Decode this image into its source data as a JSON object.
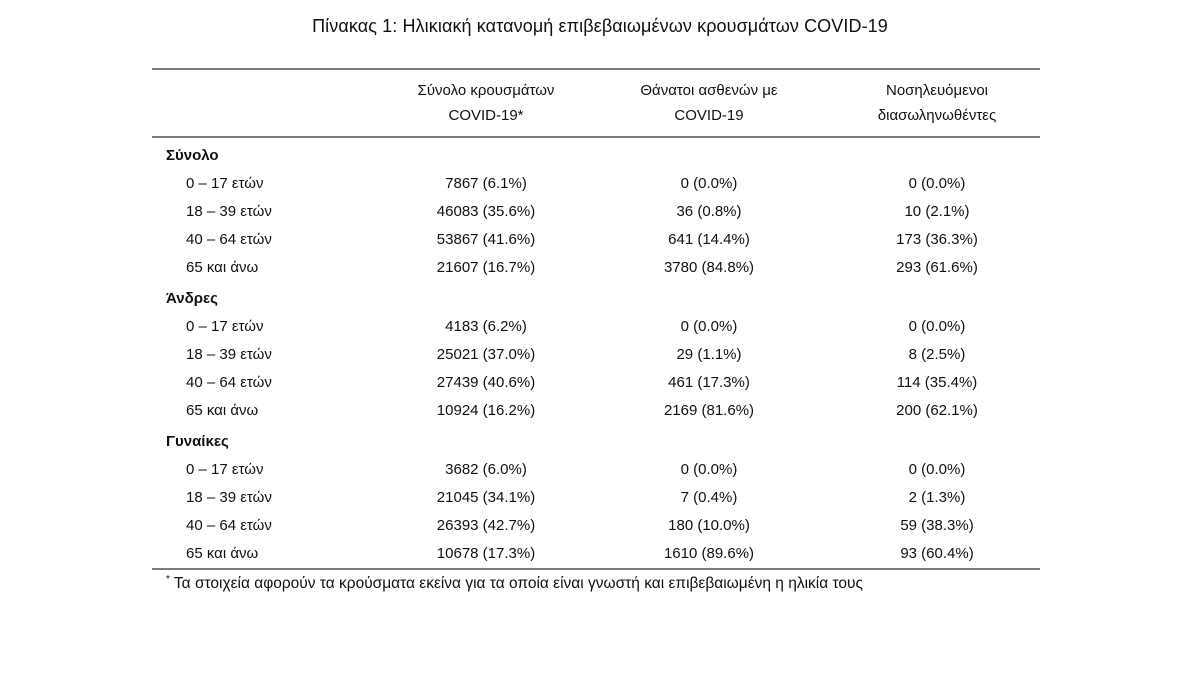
{
  "title": "Πίνακας 1: Ηλικιακή κατανομή επιβεβαιωμένων κρουσμάτων COVID-19",
  "columns": {
    "c1": "Σύνολο κρουσμάτων\nCOVID-19*",
    "c2": "Θάνατοι ασθενών με\nCOVID-19",
    "c3": "Νοσηλευόμενοι\nδιασωληνωθέντες"
  },
  "groups": [
    {
      "label": "Σύνολο",
      "rows": [
        {
          "age": "0 – 17 ετών",
          "cases": "7867 (6.1%)",
          "deaths": "0 (0.0%)",
          "intubated": "0 (0.0%)"
        },
        {
          "age": "18 – 39 ετών",
          "cases": "46083 (35.6%)",
          "deaths": "36 (0.8%)",
          "intubated": "10 (2.1%)"
        },
        {
          "age": "40 – 64 ετών",
          "cases": "53867 (41.6%)",
          "deaths": "641 (14.4%)",
          "intubated": "173 (36.3%)"
        },
        {
          "age": "65 και άνω",
          "cases": "21607 (16.7%)",
          "deaths": "3780 (84.8%)",
          "intubated": "293 (61.6%)"
        }
      ]
    },
    {
      "label": "Άνδρες",
      "rows": [
        {
          "age": "0 – 17 ετών",
          "cases": "4183 (6.2%)",
          "deaths": "0 (0.0%)",
          "intubated": "0 (0.0%)"
        },
        {
          "age": "18 – 39 ετών",
          "cases": "25021 (37.0%)",
          "deaths": "29 (1.1%)",
          "intubated": "8 (2.5%)"
        },
        {
          "age": "40 – 64 ετών",
          "cases": "27439 (40.6%)",
          "deaths": "461 (17.3%)",
          "intubated": "114 (35.4%)"
        },
        {
          "age": "65 και άνω",
          "cases": "10924 (16.2%)",
          "deaths": "2169 (81.6%)",
          "intubated": "200 (62.1%)"
        }
      ]
    },
    {
      "label": "Γυναίκες",
      "rows": [
        {
          "age": "0 – 17 ετών",
          "cases": "3682 (6.0%)",
          "deaths": "0 (0.0%)",
          "intubated": "0 (0.0%)"
        },
        {
          "age": "18 – 39 ετών",
          "cases": "21045 (34.1%)",
          "deaths": "7 (0.4%)",
          "intubated": "2 (1.3%)"
        },
        {
          "age": "40 – 64 ετών",
          "cases": "26393 (42.7%)",
          "deaths": "180 (10.0%)",
          "intubated": "59 (38.3%)"
        },
        {
          "age": "65 και άνω",
          "cases": "10678 (17.3%)",
          "deaths": "1610 (89.6%)",
          "intubated": "93 (60.4%)"
        }
      ]
    }
  ],
  "footnote": {
    "marker": "*",
    "text": "Τα στοιχεία αφορούν τα κρούσματα εκείνα για τα οποία είναι γνωστή και επιβεβαιωμένη η ηλικία τους"
  }
}
